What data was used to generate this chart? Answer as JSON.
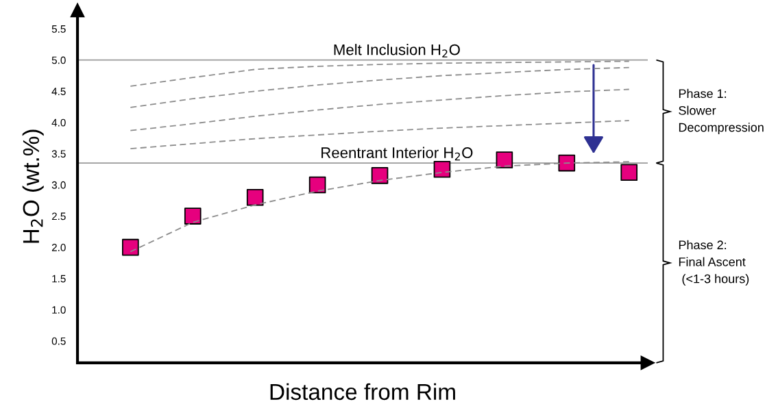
{
  "chart_data": {
    "type": "scatter",
    "xlabel": "Distance from Rim",
    "ylabel": "H$_{2}$O (wt.%)",
    "categories": [
      null,
      null,
      null,
      null,
      null,
      null,
      null,
      null,
      null
    ],
    "ylim": [
      0.15,
      5.8
    ],
    "yticks": [
      0.5,
      {
        "value": 1,
        "label": "1.0"
      },
      1.5,
      {
        "value": 2,
        "label": "2.0"
      },
      2.5,
      {
        "value": 3,
        "label": "3.0"
      },
      3.5,
      {
        "value": 4,
        "label": "4.0"
      },
      4.5,
      {
        "value": 5,
        "label": "5.0"
      },
      5.5
    ],
    "series": [
      {
        "type": "line",
        "line_style": "dashed",
        "marker": "none",
        "color": "#8c8c8c",
        "values": [
          4.58,
          4.72,
          4.85,
          4.9,
          4.93,
          4.95,
          4.96,
          4.97,
          4.98
        ]
      },
      {
        "type": "line",
        "line_style": "dashed",
        "marker": "none",
        "color": "#8c8c8c",
        "values": [
          4.24,
          4.38,
          4.5,
          4.6,
          4.68,
          4.75,
          4.8,
          4.85,
          4.88
        ]
      },
      {
        "type": "line",
        "line_style": "dashed",
        "marker": "none",
        "color": "#8c8c8c",
        "values": [
          3.87,
          3.98,
          4.1,
          4.2,
          4.29,
          4.36,
          4.43,
          4.49,
          4.53
        ]
      },
      {
        "type": "line",
        "line_style": "dashed",
        "marker": "none",
        "color": "#8c8c8c",
        "values": [
          3.58,
          3.66,
          3.74,
          3.8,
          3.86,
          3.91,
          3.95,
          3.99,
          4.03
        ]
      },
      {
        "type": "line",
        "line_style": "dashed",
        "marker": "none",
        "color": "#8c8c8c",
        "values": [
          1.93,
          2.4,
          2.68,
          2.9,
          3.07,
          3.2,
          3.3,
          3.35,
          3.37
        ]
      },
      {
        "marker": "square",
        "color": "#e6007e",
        "values": [
          2.0,
          2.5,
          2.8,
          3.0,
          3.15,
          3.25,
          3.4,
          3.35,
          3.2
        ]
      }
    ],
    "ref_lines": [
      {
        "axis": "y",
        "value": 5.0,
        "label": "Melt Inclusion H$_{2}$O",
        "color": "#999999"
      },
      {
        "axis": "y",
        "value": 3.35,
        "label": "Reentrant Interior H$_{2}$O",
        "color": "#999999"
      }
    ],
    "annotations": [
      "Phase 1:\nSlower\nDecompression",
      "Phase 2:\nFinal Ascent\n (<1-3 hours)"
    ],
    "legend": false
  }
}
